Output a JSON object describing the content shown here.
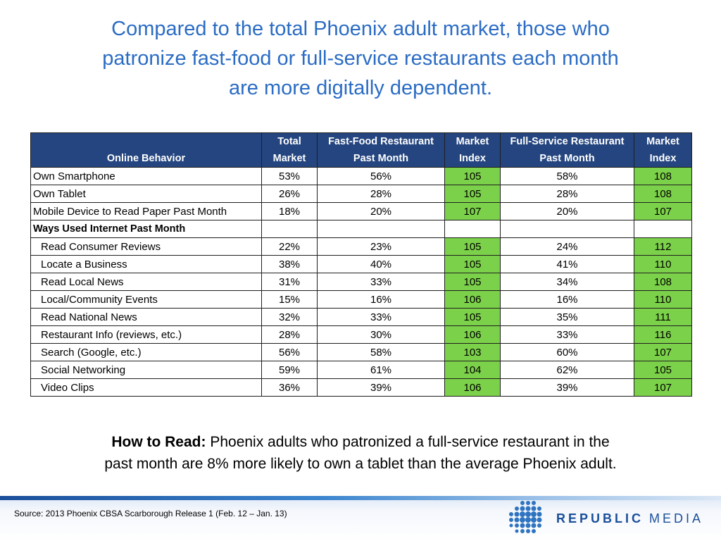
{
  "title": {
    "line1": "Compared to the total Phoenix adult market, those who",
    "line2": "patronize fast-food or full-service restaurants each month",
    "line3": "are more digitally dependent."
  },
  "table": {
    "headers": {
      "behavior": "Online Behavior",
      "total_l1": "Total",
      "total_l2": "Market",
      "ff_l1": "Fast-Food Restaurant",
      "ff_l2": "Past Month",
      "ffidx_l1": "Market",
      "ffidx_l2": "Index",
      "fs_l1": "Full-Service Restaurant",
      "fs_l2": "Past Month",
      "fsidx_l1": "Market",
      "fsidx_l2": "Index"
    },
    "rows": [
      {
        "label": "Own Smartphone",
        "total": "53%",
        "ff": "56%",
        "ffidx": "105",
        "fs": "58%",
        "fsidx": "108"
      },
      {
        "label": "Own Tablet",
        "total": "26%",
        "ff": "28%",
        "ffidx": "105",
        "fs": "28%",
        "fsidx": "108"
      },
      {
        "label": "Mobile Device to Read Paper Past Month",
        "total": "18%",
        "ff": "20%",
        "ffidx": "107",
        "fs": "20%",
        "fsidx": "107"
      },
      {
        "label": "Ways Used Internet Past Month",
        "total": "",
        "ff": "",
        "ffidx": "",
        "fs": "",
        "fsidx": ""
      },
      {
        "label": "Read Consumer Reviews",
        "total": "22%",
        "ff": "23%",
        "ffidx": "105",
        "fs": "24%",
        "fsidx": "112"
      },
      {
        "label": "Locate a Business",
        "total": "38%",
        "ff": "40%",
        "ffidx": "105",
        "fs": "41%",
        "fsidx": "110"
      },
      {
        "label": "Read Local News",
        "total": "31%",
        "ff": "33%",
        "ffidx": "105",
        "fs": "34%",
        "fsidx": "108"
      },
      {
        "label": "Local/Community Events",
        "total": "15%",
        "ff": "16%",
        "ffidx": "106",
        "fs": "16%",
        "fsidx": "110"
      },
      {
        "label": "Read National News",
        "total": "32%",
        "ff": "33%",
        "ffidx": "105",
        "fs": "35%",
        "fsidx": "111"
      },
      {
        "label": "Restaurant Info (reviews, etc.)",
        "total": "28%",
        "ff": "30%",
        "ffidx": "106",
        "fs": "33%",
        "fsidx": "116"
      },
      {
        "label": "Search (Google, etc.)",
        "total": "56%",
        "ff": "58%",
        "ffidx": "103",
        "fs": "60%",
        "fsidx": "107"
      },
      {
        "label": "Social Networking",
        "total": "59%",
        "ff": "61%",
        "ffidx": "104",
        "fs": "62%",
        "fsidx": "105"
      },
      {
        "label": "Video Clips",
        "total": "36%",
        "ff": "39%",
        "ffidx": "106",
        "fs": "39%",
        "fsidx": "107"
      }
    ]
  },
  "how_to_read": {
    "label": "How to Read:",
    "text_l1": " Phoenix adults who patronized a full-service restaurant in the",
    "text_l2": "past month are 8% more likely to own a tablet than the average Phoenix adult."
  },
  "footer": {
    "source": "Source:  2013 Phoenix CBSA Scarborough Release 1 (Feb. 12 – Jan. 13)",
    "brand_bold": "REPUBLIC",
    "brand_light": "MEDIA"
  },
  "colors": {
    "title": "#2b6cc4",
    "header_bg": "#24457f",
    "index_bg": "#7cd14a",
    "brand": "#1b4f9a"
  }
}
